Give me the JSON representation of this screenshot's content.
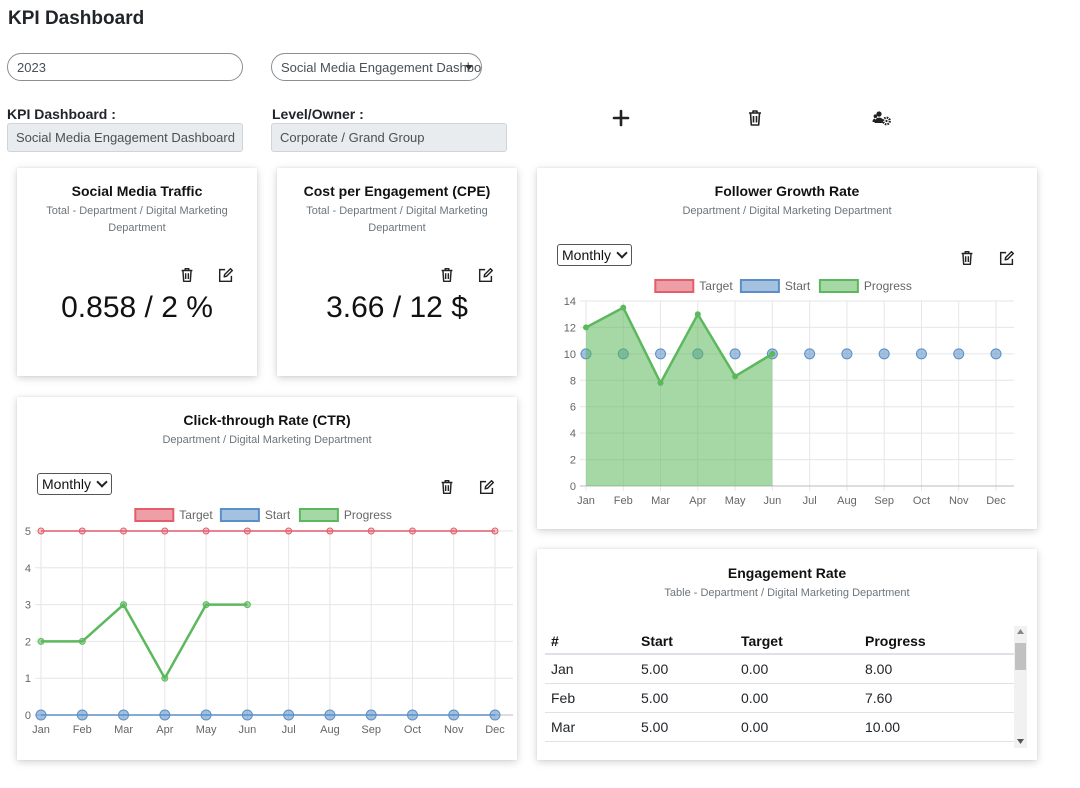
{
  "page": {
    "title": "KPI Dashboard"
  },
  "filters": {
    "year": "2023",
    "dashboard_select": "Social Media Engagement Dashboard"
  },
  "info": {
    "dashboard_label": "KPI Dashboard :",
    "dashboard_value": "Social Media Engagement Dashboard",
    "owner_label": "Level/Owner :",
    "owner_value": "Corporate / Grand Group"
  },
  "toolbar": {
    "icons": [
      "plus-icon",
      "trash-icon",
      "users-gear-icon"
    ]
  },
  "cards": {
    "traffic": {
      "title": "Social Media Traffic",
      "subtitle": "Total - Department / Digital Marketing Department",
      "value": "0.858 / 2 %"
    },
    "cpe": {
      "title": "Cost per Engagement (CPE)",
      "subtitle": "Total - Department / Digital Marketing Department",
      "value": "3.66 / 12 $"
    },
    "ctr": {
      "title": "Click-through Rate (CTR)",
      "subtitle": "Department / Digital Marketing Department",
      "period": "Monthly"
    },
    "follower": {
      "title": "Follower Growth Rate",
      "subtitle": "Department / Digital Marketing Department",
      "period": "Monthly"
    },
    "engagement": {
      "title": "Engagement Rate",
      "subtitle": "Table - Department / Digital Marketing Department",
      "columns": [
        "#",
        "Start",
        "Target",
        "Progress"
      ],
      "rows": [
        [
          "Jan",
          "5.00",
          "0.00",
          "8.00"
        ],
        [
          "Feb",
          "5.00",
          "0.00",
          "7.60"
        ],
        [
          "Mar",
          "5.00",
          "0.00",
          "10.00"
        ]
      ]
    }
  },
  "colors": {
    "target": "#e35d6a",
    "start": "#5a8fc7",
    "progress": "#5cb85c"
  },
  "chart_data": [
    {
      "id": "ctr",
      "type": "line",
      "categories": [
        "Jan",
        "Feb",
        "Mar",
        "Apr",
        "May",
        "Jun",
        "Jul",
        "Aug",
        "Sep",
        "Oct",
        "Nov",
        "Dec"
      ],
      "series": [
        {
          "name": "Target",
          "values": [
            5,
            5,
            5,
            5,
            5,
            5,
            5,
            5,
            5,
            5,
            5,
            5
          ]
        },
        {
          "name": "Start",
          "values": [
            0,
            0,
            0,
            0,
            0,
            0,
            0,
            0,
            0,
            0,
            0,
            0
          ]
        },
        {
          "name": "Progress",
          "values": [
            2,
            2,
            3,
            1,
            3,
            3,
            null,
            null,
            null,
            null,
            null,
            null
          ]
        }
      ],
      "ylim": [
        0,
        5
      ],
      "yticks": [
        0,
        1,
        2,
        3,
        4,
        5
      ],
      "legend": "top",
      "grid": true
    },
    {
      "id": "follower",
      "type": "area",
      "categories": [
        "Jan",
        "Feb",
        "Mar",
        "Apr",
        "May",
        "Jun",
        "Jul",
        "Aug",
        "Sep",
        "Oct",
        "Nov",
        "Dec"
      ],
      "series": [
        {
          "name": "Target",
          "values": [
            null,
            null,
            null,
            null,
            null,
            null,
            null,
            null,
            null,
            null,
            null,
            null
          ]
        },
        {
          "name": "Start",
          "values": [
            10,
            10,
            10,
            10,
            10,
            10,
            10,
            10,
            10,
            10,
            10,
            10
          ]
        },
        {
          "name": "Progress",
          "values": [
            12,
            13.5,
            7.8,
            13,
            8.3,
            10,
            null,
            null,
            null,
            null,
            null,
            null
          ]
        }
      ],
      "ylim": [
        0,
        14
      ],
      "yticks": [
        0,
        2,
        4,
        6,
        8,
        10,
        12,
        14
      ],
      "legend": "top",
      "grid": true
    }
  ]
}
